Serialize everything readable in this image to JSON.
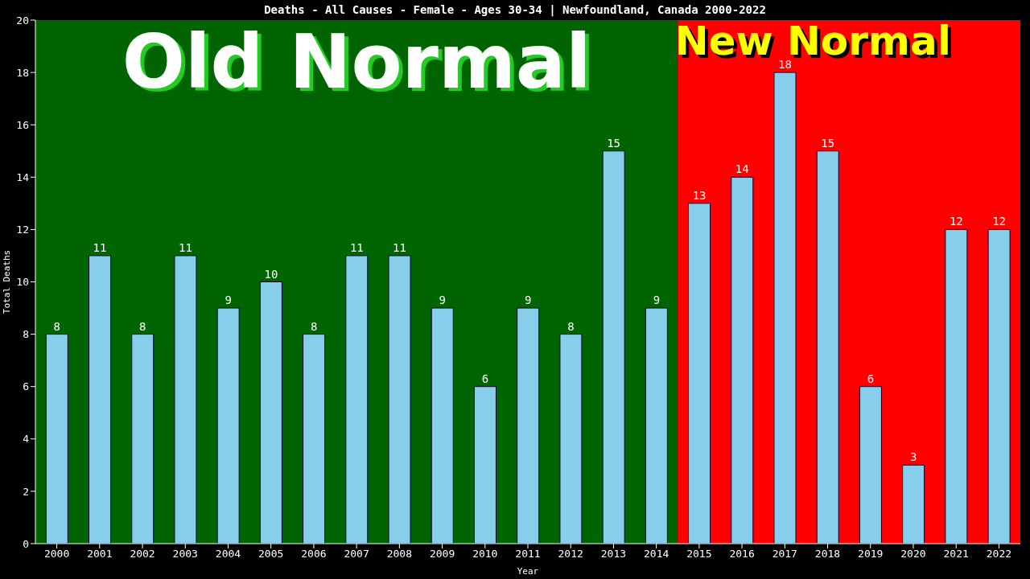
{
  "chart_data": {
    "type": "bar",
    "title": "Deaths - All Causes - Female - Ages 30-34 | Newfoundland, Canada 2000-2022",
    "xlabel": "Year",
    "ylabel": "Total Deaths",
    "categories": [
      "2000",
      "2001",
      "2002",
      "2003",
      "2004",
      "2005",
      "2006",
      "2007",
      "2008",
      "2009",
      "2010",
      "2011",
      "2012",
      "2013",
      "2014",
      "2015",
      "2016",
      "2017",
      "2018",
      "2019",
      "2020",
      "2021",
      "2022"
    ],
    "values": [
      8,
      11,
      8,
      11,
      9,
      10,
      8,
      11,
      11,
      9,
      6,
      9,
      8,
      15,
      9,
      13,
      14,
      18,
      15,
      6,
      3,
      12,
      12
    ],
    "color": "#87ceeb",
    "ylim": [
      0,
      20
    ],
    "yticks": [
      0,
      2,
      4,
      6,
      8,
      10,
      12,
      14,
      16,
      18,
      20
    ],
    "grid": false,
    "legend": false,
    "data_labels": true,
    "bands": [
      {
        "axis": "x",
        "from": "2000",
        "to": "2014",
        "label": "Old Normal",
        "color": "#006400"
      },
      {
        "axis": "x",
        "from": "2015",
        "to": "2022",
        "label": "New Normal",
        "color": "#ff0000"
      }
    ]
  }
}
